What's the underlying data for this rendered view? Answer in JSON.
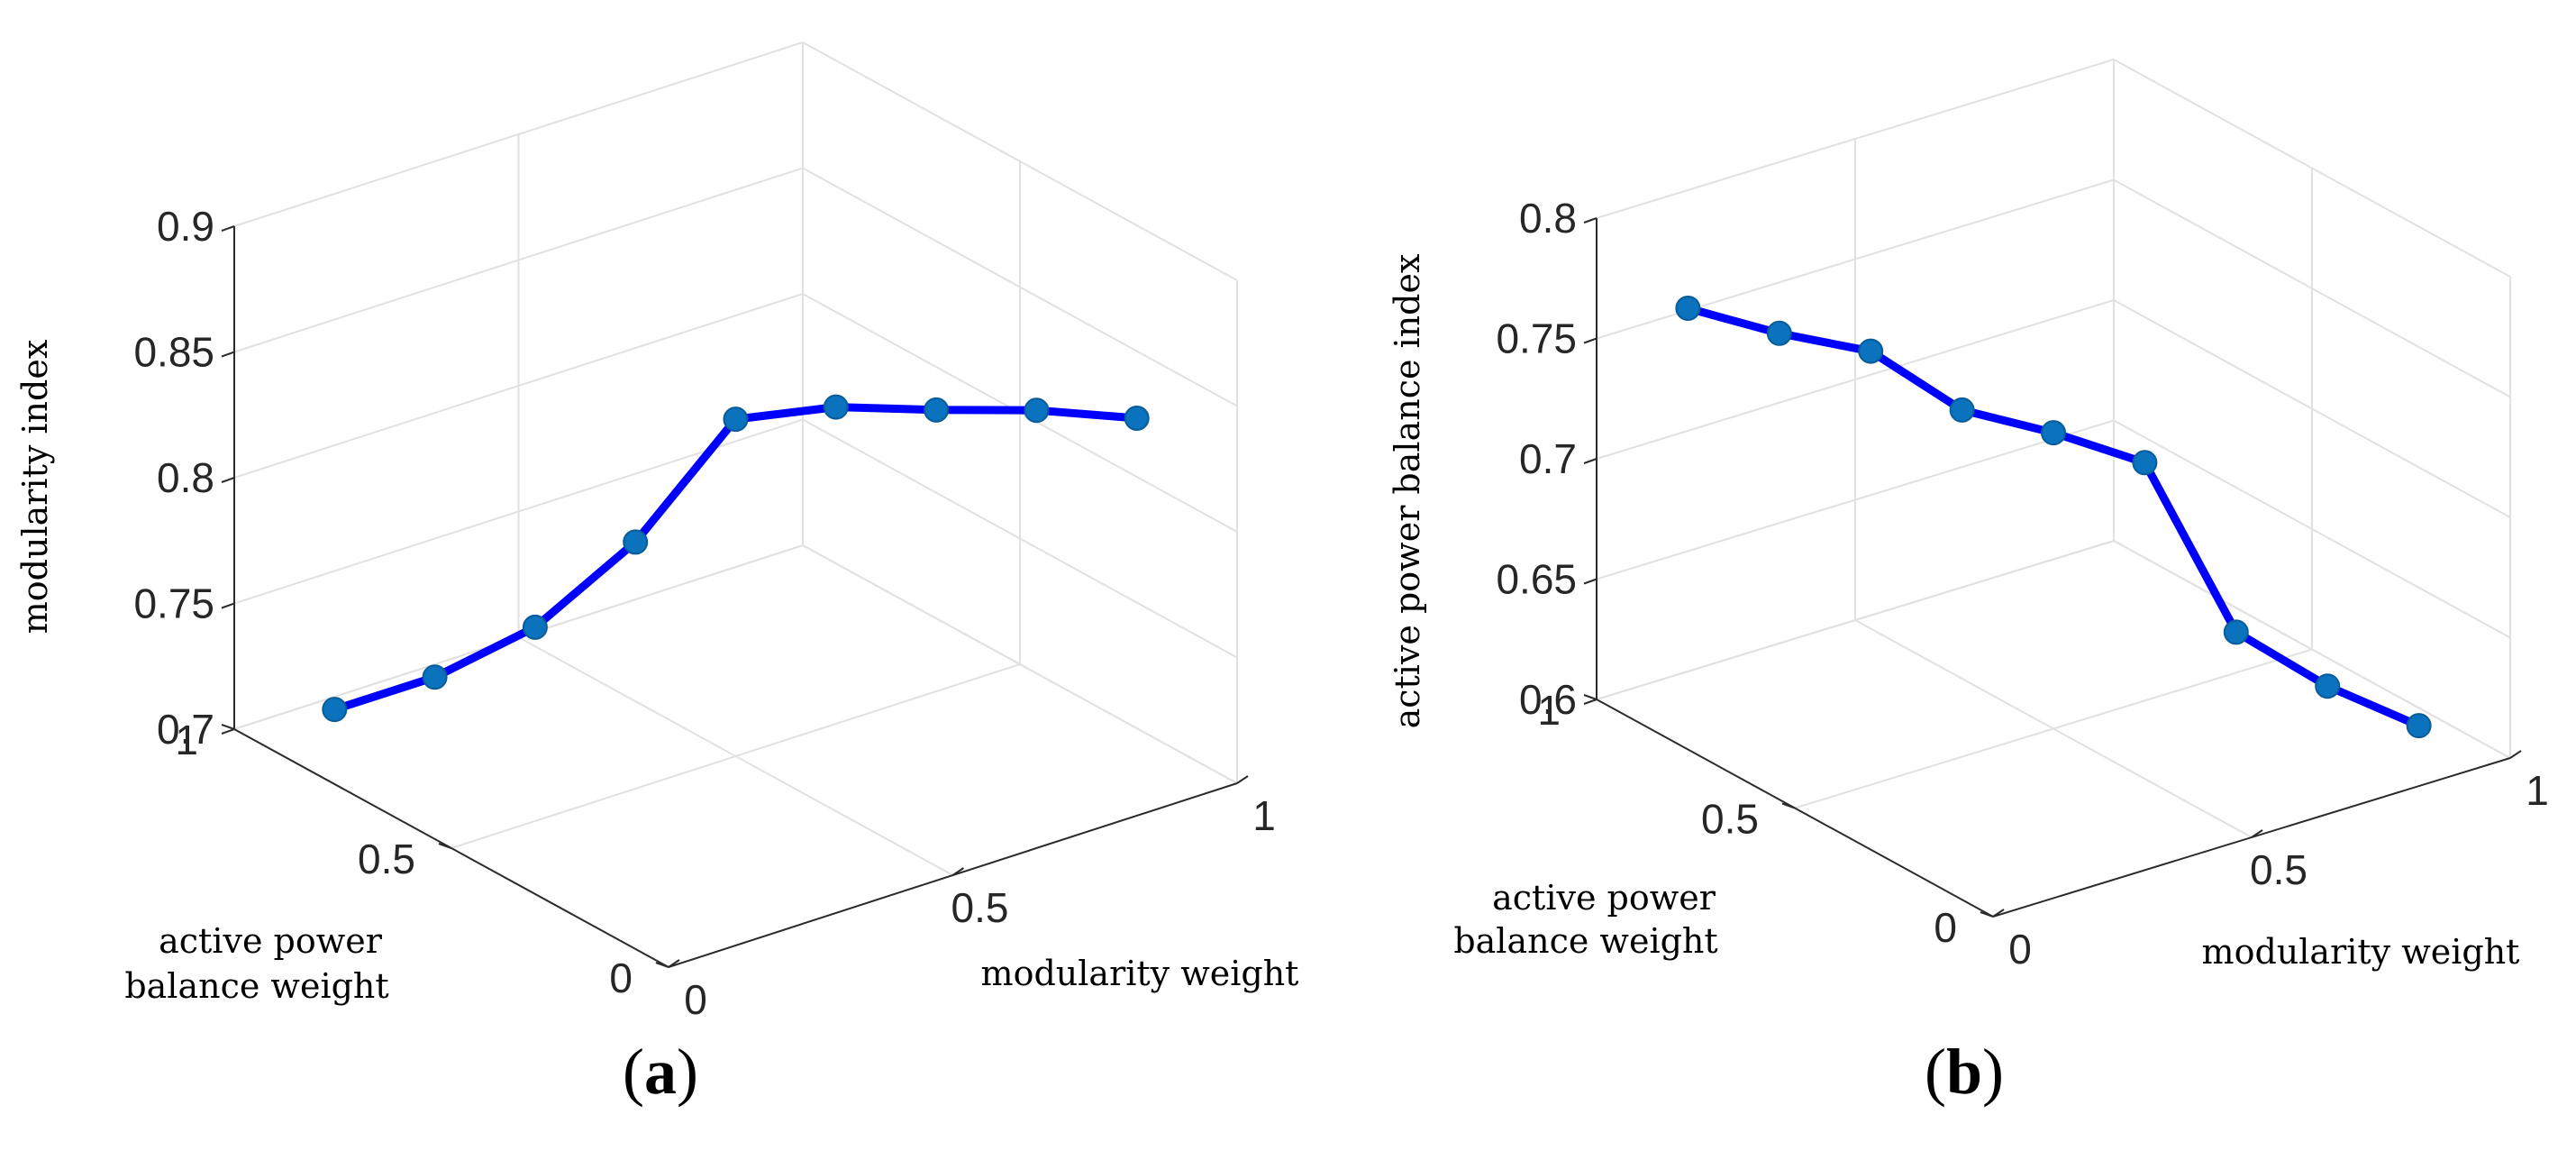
{
  "colors": {
    "line": "#0000ff",
    "marker": "#0b72bd",
    "grid": "#e1e1e1",
    "axis": "#2b2b2b"
  },
  "chart_data": [
    {
      "type": "line",
      "panel": "a",
      "caption": {
        "open": "(",
        "letter": "a",
        "close": ")"
      },
      "zlabel": "modularity index",
      "ylabel_lines": [
        "active power",
        "balance weight"
      ],
      "xlabel": "modularity weight",
      "zlim": [
        0.7,
        0.9
      ],
      "z_ticks": [
        "0.7",
        "0.75",
        "0.8",
        "0.85",
        "0.9"
      ],
      "y_ticks": [
        "0",
        "0.5",
        "1"
      ],
      "x_ticks": [
        "0",
        "0.5",
        "1"
      ],
      "series": [
        {
          "name": "modularity index",
          "x": [
            0.1,
            0.2,
            0.3,
            0.4,
            0.5,
            0.6,
            0.7,
            0.8,
            0.9
          ],
          "y": [
            0.9,
            0.8,
            0.7,
            0.6,
            0.5,
            0.4,
            0.3,
            0.2,
            0.1
          ],
          "values": [
            0.71,
            0.725,
            0.747,
            0.783,
            0.834,
            0.841,
            0.842,
            0.844,
            0.843
          ]
        }
      ]
    },
    {
      "type": "line",
      "panel": "b",
      "caption": {
        "open": "(",
        "letter": "b",
        "close": ")"
      },
      "zlabel": "active power balance index",
      "ylabel_lines": [
        "active power",
        "balance weight"
      ],
      "xlabel": "modularity weight",
      "zlim": [
        0.6,
        0.8
      ],
      "z_ticks": [
        "0.6",
        "0.65",
        "0.7",
        "0.75",
        "0.8"
      ],
      "y_ticks": [
        "0",
        "0.5",
        "1"
      ],
      "x_ticks": [
        "0",
        "0.5",
        "1"
      ],
      "series": [
        {
          "name": "active power balance index",
          "x": [
            0.1,
            0.2,
            0.3,
            0.4,
            0.5,
            0.6,
            0.7,
            0.8,
            0.9
          ],
          "y": [
            0.9,
            0.8,
            0.7,
            0.6,
            0.5,
            0.4,
            0.3,
            0.2,
            0.1
          ],
          "values": [
            0.765,
            0.757,
            0.752,
            0.73,
            0.723,
            0.713,
            0.645,
            0.625,
            0.611
          ]
        }
      ]
    }
  ]
}
